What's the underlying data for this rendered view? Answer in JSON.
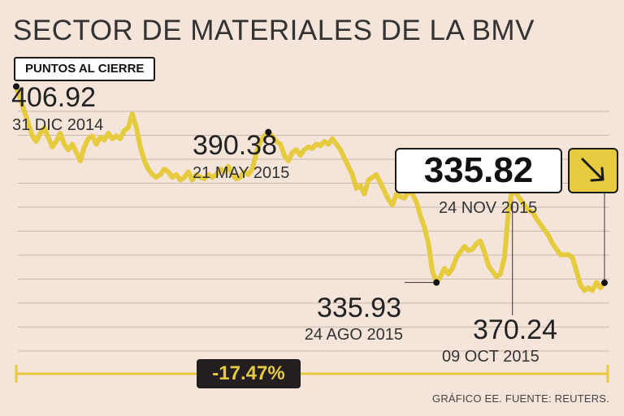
{
  "title": "SECTOR DE MATERIALES DE LA BMV",
  "units_label": "PUNTOS AL CIERRE",
  "source": "GRÁFICO EE. FUENTE: REUTERS.",
  "change_label": "-17.47%",
  "colors": {
    "background": "#f4e4da",
    "line": "#e6cb3f",
    "grid": "#c9b9ad",
    "dark": "#231f20"
  },
  "annotations": {
    "start": {
      "value": "406.92",
      "date": "31 DIC 2014"
    },
    "may": {
      "value": "390.38",
      "date": "21 MAY 2015"
    },
    "aug": {
      "value": "335.93",
      "date": "24 AGO 2015"
    },
    "oct": {
      "value": "370.24",
      "date": "09 OCT 2015"
    },
    "current": {
      "value": "335.82",
      "date": "24 NOV 2015"
    }
  },
  "arrow_icon": "arrow-down-right-icon",
  "chart_data": {
    "type": "line",
    "title": "SECTOR DE MATERIALES DE LA BMV",
    "ylabel": "PUNTOS AL CIERRE",
    "xlabel": "",
    "x_range": [
      "31 DIC 2014",
      "24 NOV 2015"
    ],
    "ylim": [
      322,
      410
    ],
    "grid": true,
    "series": [
      {
        "name": "Sector de materiales BMV",
        "values": [
          406.92,
          402.5,
          398.0,
          393.5,
          389.0,
          387.0,
          390.0,
          392.0,
          388.5,
          385.0,
          387.0,
          390.0,
          386.0,
          384.0,
          386.0,
          383.0,
          380.0,
          385.0,
          388.0,
          389.0,
          386.0,
          388.5,
          387.5,
          390.0,
          388.0,
          389.0,
          388.0,
          391.0,
          392.0,
          397.0,
          392.0,
          385.0,
          380.0,
          377.0,
          375.0,
          374.0,
          375.0,
          377.0,
          376.0,
          374.0,
          375.0,
          373.0,
          374.0,
          376.0,
          373.0,
          375.0,
          374.0,
          373.5,
          375.0,
          374.0,
          375.0,
          377.0,
          376.0,
          378.0,
          375.0,
          373.5,
          374.0,
          376.0,
          375.0,
          377.0,
          383.0,
          387.0,
          389.0,
          390.38,
          389.0,
          387.0,
          386.0,
          382.0,
          380.0,
          383.0,
          384.0,
          382.0,
          384.0,
          385.0,
          384.5,
          386.0,
          385.5,
          387.0,
          386.0,
          388.0,
          386.0,
          384.0,
          381.0,
          378.0,
          375.0,
          370.0,
          371.0,
          368.0,
          373.0,
          374.0,
          375.0,
          372.0,
          369.0,
          366.0,
          364.0,
          368.0,
          367.0,
          366.5,
          369.0,
          368.0,
          365.0,
          360.0,
          356.0,
          350.0,
          340.0,
          335.93,
          338.0,
          341.0,
          339.0,
          341.0,
          345.0,
          347.0,
          349.0,
          347.5,
          348.0,
          350.0,
          351.0,
          347.0,
          342.0,
          340.0,
          338.0,
          339.0,
          345.0,
          362.0,
          370.24,
          368.0,
          366.0,
          364.0,
          362.0,
          361.5,
          359.0,
          357.0,
          355.0,
          353.0,
          350.0,
          348.0,
          346.0,
          346.0,
          346.0,
          345.0,
          340.0,
          335.0,
          333.0,
          334.0,
          333.0,
          336.0,
          334.0,
          335.82
        ]
      }
    ],
    "annotated_points": [
      {
        "label": "406.92",
        "date": "31 DIC 2014",
        "index": 0
      },
      {
        "label": "390.38",
        "date": "21 MAY 2015",
        "index": 63
      },
      {
        "label": "335.93",
        "date": "24 AGO 2015",
        "index": 105
      },
      {
        "label": "370.24",
        "date": "09 OCT 2015",
        "index": 124
      },
      {
        "label": "335.82",
        "date": "24 NOV 2015",
        "index": 147
      }
    ]
  }
}
